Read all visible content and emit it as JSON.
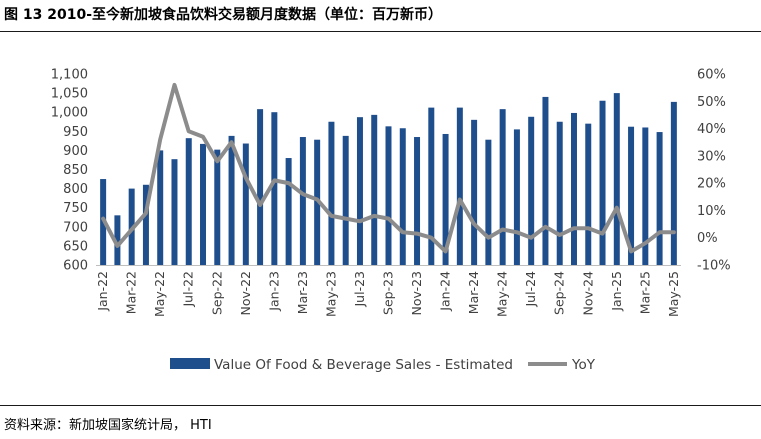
{
  "title": "图 13 2010-至今新加坡食品饮料交易额月度数据（单位：百万新币）",
  "source": "资料来源：新加坡国家统计局， HTI",
  "colors": {
    "bar": "#1f4e8c",
    "line": "#8c8c8c"
  },
  "chart_data": {
    "type": "bar+line",
    "title": "2010-至今新加坡食品饮料交易额月度数据（单位：百万新币）",
    "categories": [
      "Jan-22",
      "Feb-22",
      "Mar-22",
      "Apr-22",
      "May-22",
      "Jun-22",
      "Jul-22",
      "Aug-22",
      "Sep-22",
      "Oct-22",
      "Nov-22",
      "Dec-22",
      "Jan-23",
      "Feb-23",
      "Mar-23",
      "Apr-23",
      "May-23",
      "Jun-23",
      "Jul-23",
      "Aug-23",
      "Sep-23",
      "Oct-23",
      "Nov-23",
      "Dec-23",
      "Jan-24",
      "Feb-24",
      "Mar-24",
      "Apr-24",
      "May-24",
      "Jun-24",
      "Jul-24",
      "Aug-24",
      "Sep-24",
      "Oct-24",
      "Nov-24",
      "Dec-24",
      "Jan-25",
      "Feb-25",
      "Mar-25",
      "Apr-25",
      "May-25"
    ],
    "x_tick_labels": [
      "Jan-22",
      "Mar-22",
      "May-22",
      "Jul-22",
      "Sep-22",
      "Nov-22",
      "Jan-23",
      "Mar-23",
      "May-23",
      "Jul-23",
      "Sep-23",
      "Nov-23",
      "Jan-24",
      "Mar-24",
      "May-24",
      "Jul-24",
      "Sep-24",
      "Nov-24",
      "Jan-25",
      "Mar-25",
      "May-25"
    ],
    "series": [
      {
        "name": "Value Of Food & Beverage Sales - Estimated",
        "type": "bar",
        "axis": "left",
        "values": [
          825,
          730,
          800,
          810,
          900,
          877,
          932,
          917,
          902,
          938,
          918,
          1008,
          1000,
          880,
          935,
          928,
          975,
          938,
          987,
          993,
          963,
          958,
          935,
          1012,
          943,
          1012,
          980,
          928,
          1008,
          955,
          988,
          1040,
          975,
          998,
          970,
          1030,
          1050,
          962,
          960,
          948,
          1027
        ]
      },
      {
        "name": "YoY",
        "type": "line",
        "axis": "right",
        "values": [
          7,
          -3,
          3,
          9,
          36,
          56,
          39,
          37,
          28,
          35,
          22,
          12,
          21,
          20,
          16,
          14,
          8,
          7,
          6,
          8,
          7,
          2,
          1.5,
          0,
          -5,
          14,
          5,
          0,
          3,
          2,
          0,
          4,
          1,
          3.5,
          3.5,
          1.5,
          11,
          -5,
          -2,
          2,
          2
        ]
      }
    ],
    "y_left": {
      "min": 600,
      "max": 1100,
      "step": 50,
      "ticks": [
        "600",
        "650",
        "700",
        "750",
        "800",
        "850",
        "900",
        "950",
        "1,000",
        "1,050",
        "1,100"
      ]
    },
    "y_right": {
      "min": -10,
      "max": 60,
      "step": 10,
      "ticks": [
        "-10%",
        "0%",
        "10%",
        "20%",
        "30%",
        "40%",
        "50%",
        "60%"
      ]
    },
    "legend": [
      "Value Of Food & Beverage Sales - Estimated",
      "YoY"
    ],
    "legend_position": "bottom"
  }
}
